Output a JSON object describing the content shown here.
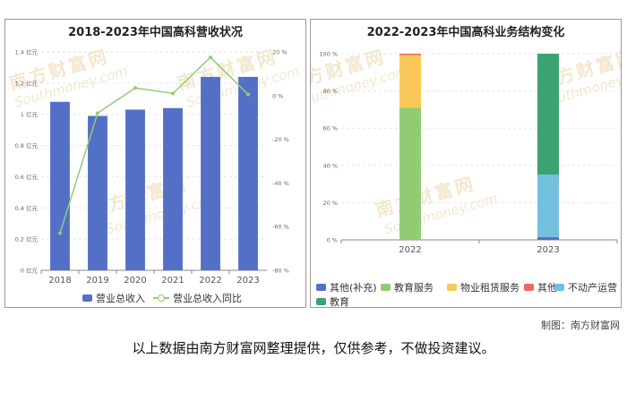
{
  "watermark": {
    "cn": "南方财富网",
    "en": "Southmoney.com"
  },
  "credit": "制图：南方财富网",
  "disclaimer": "以上数据由南方财富网整理提供，仅供参考，不做投资建议。",
  "chart_data": [
    {
      "type": "bar",
      "title": "2018-2023年中国高科营收状况",
      "categories": [
        "2018",
        "2019",
        "2020",
        "2021",
        "2022",
        "2023"
      ],
      "series": [
        {
          "name": "营业总收入",
          "type": "bar",
          "axis": "left",
          "color": "#5470c6",
          "values": [
            1.08,
            0.99,
            1.03,
            1.04,
            1.24,
            1.24
          ]
        },
        {
          "name": "营业总收入同比",
          "type": "line",
          "axis": "right",
          "color": "#91cc75",
          "values": [
            -63,
            -8,
            3.5,
            1,
            17.5,
            0.5
          ]
        }
      ],
      "y_left": {
        "min": 0,
        "max": 1.4,
        "ticks": [
          "0 亿元",
          "0.2 亿元",
          "0.4 亿元",
          "0.6 亿元",
          "0.8 亿元",
          "1 亿元",
          "1.2 亿元",
          "1.4 亿元"
        ]
      },
      "y_right": {
        "min": -80,
        "max": 20,
        "ticks": [
          "-80 %",
          "-60 %",
          "-40 %",
          "-20 %",
          "0 %",
          "20 %"
        ]
      },
      "legend_position": "bottom"
    },
    {
      "type": "bar",
      "stacked": true,
      "title": "2022-2023年中国高科业务结构变化",
      "categories": [
        "2022",
        "2023"
      ],
      "series": [
        {
          "name": "其他(补充)",
          "color": "#5470c6",
          "values": [
            0,
            1.5
          ]
        },
        {
          "name": "教育服务",
          "color": "#91cc75",
          "values": [
            71,
            0
          ]
        },
        {
          "name": "物业租赁服务",
          "color": "#fac858",
          "values": [
            28.3,
            0
          ]
        },
        {
          "name": "其他",
          "color": "#ee6666",
          "values": [
            0.7,
            0
          ]
        },
        {
          "name": "不动产运营",
          "color": "#73c0de",
          "values": [
            0,
            33.5
          ]
        },
        {
          "name": "教育",
          "color": "#3ba272",
          "values": [
            0,
            65
          ]
        }
      ],
      "y": {
        "min": 0,
        "max": 100,
        "ticks": [
          "0 %",
          "20 %",
          "40 %",
          "60 %",
          "80 %",
          "100 %"
        ]
      },
      "legend_position": "bottom"
    }
  ]
}
